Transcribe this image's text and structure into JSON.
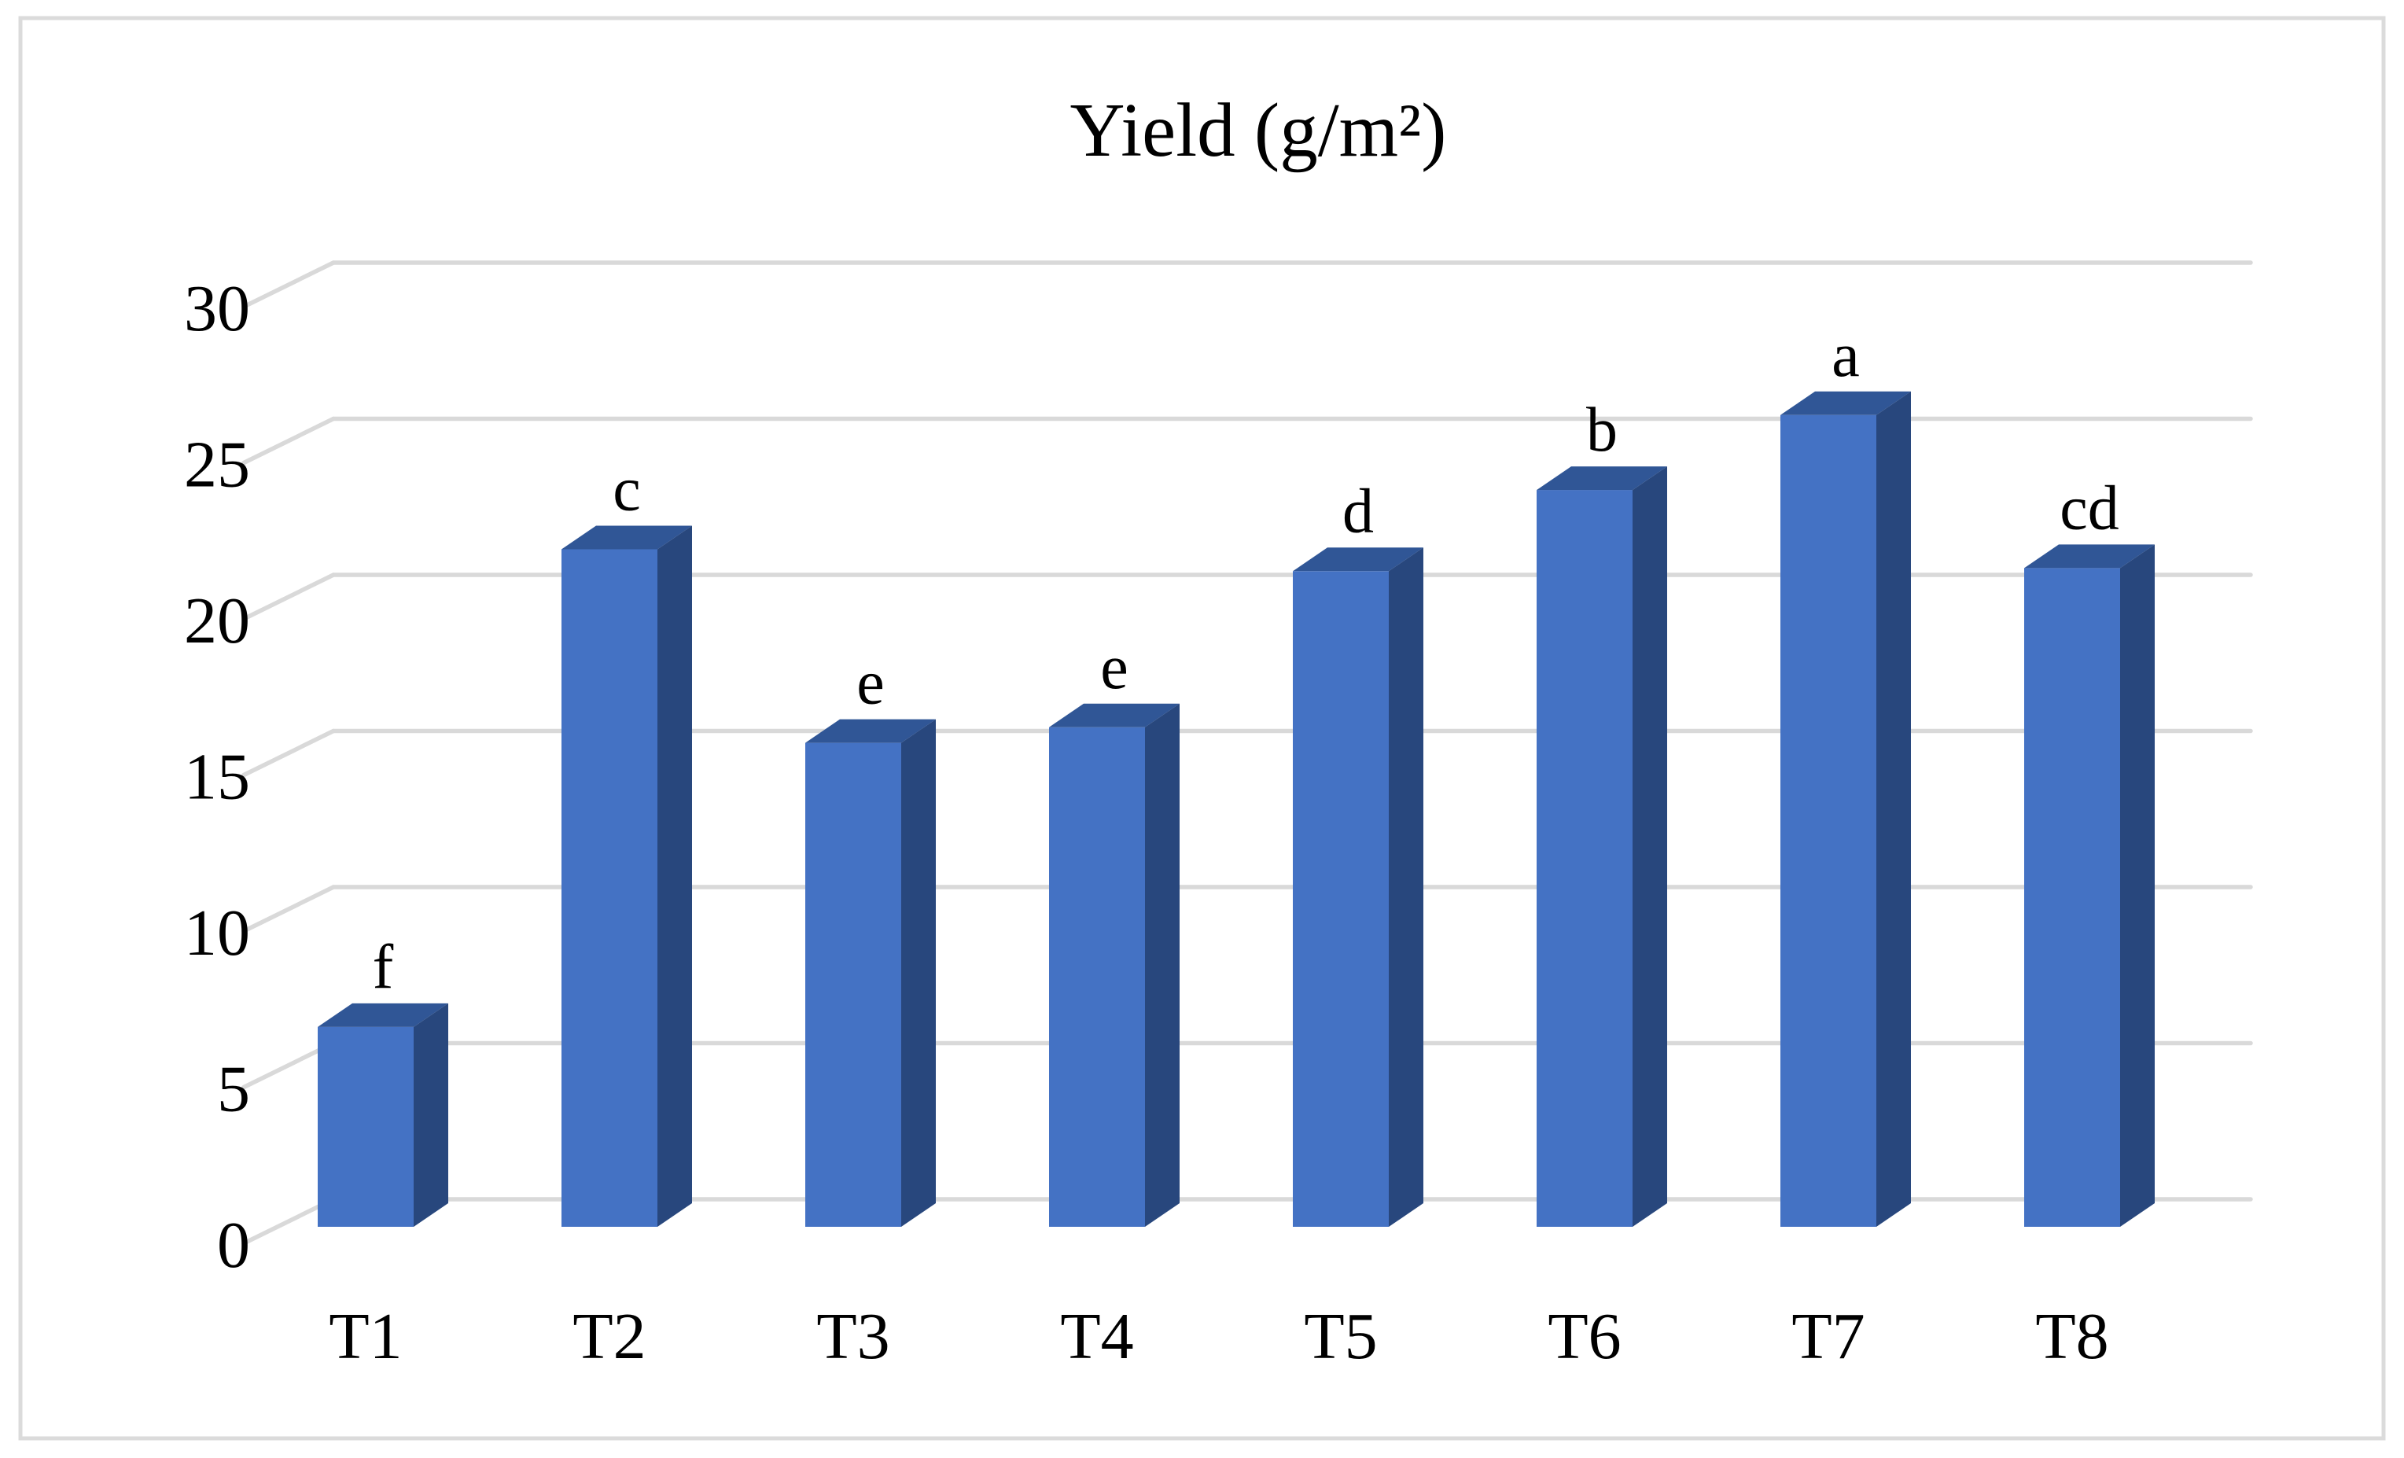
{
  "figure": {
    "background": "#FFFFFF",
    "border_color": "#DBDBDB"
  },
  "chart_data": {
    "type": "bar",
    "variant": "3d-column",
    "title": "Yield (g/m²)",
    "xlabel": "",
    "ylabel": "",
    "categories": [
      "T1",
      "T2",
      "T3",
      "T4",
      "T5",
      "T6",
      "T7",
      "T8"
    ],
    "values": [
      6.4,
      21.7,
      15.5,
      16.0,
      21.0,
      23.6,
      26.0,
      21.1
    ],
    "significance_letters": [
      "f",
      "c",
      "e",
      "e",
      "d",
      "b",
      "a",
      "cd"
    ],
    "yticks": [
      0,
      5,
      10,
      15,
      20,
      25,
      30
    ],
    "ylim": [
      0,
      30
    ],
    "grid": true,
    "legend": "none",
    "colors": {
      "bar_front": "#4472C4",
      "bar_top": "#305696",
      "bar_side": "#28477D",
      "gridline": "#D9D9D9",
      "frame": "#DBDBDB",
      "text": "#000000"
    }
  }
}
